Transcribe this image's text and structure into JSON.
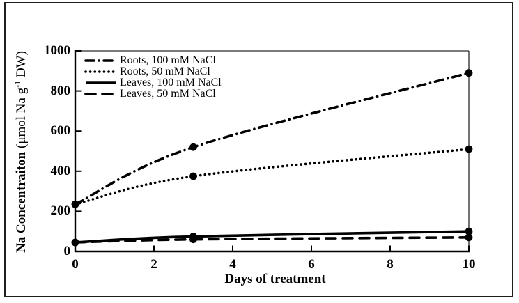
{
  "chart_data": {
    "type": "line",
    "title": "",
    "xlabel": "Days of treatment",
    "ylabel": {
      "bold": "Na Concentraiton",
      "unit_pre": "(μmol Na g",
      "unit_sup": "-1",
      "unit_post": " DW)"
    },
    "x": [
      0,
      3,
      10
    ],
    "xlim": [
      0,
      10
    ],
    "ylim": [
      0,
      1000
    ],
    "x_ticks": [
      0,
      2,
      4,
      6,
      8,
      10
    ],
    "y_ticks": [
      0,
      200,
      400,
      600,
      800,
      1000
    ],
    "grid": false,
    "legend_position": "top-left-inside",
    "marker": "filled-circle",
    "line_color": "#000000",
    "series": [
      {
        "name": "Roots, 100 mM NaCl",
        "style": "dashdot",
        "values": [
          235,
          520,
          890
        ]
      },
      {
        "name": "Roots, 50 mM NaCl",
        "style": "dotted",
        "values": [
          235,
          375,
          510
        ]
      },
      {
        "name": "Leaves, 100 mM NaCl",
        "style": "solid",
        "values": [
          45,
          75,
          100
        ]
      },
      {
        "name": "Leaves, 50 mM NaCl",
        "style": "dashed",
        "values": [
          45,
          60,
          70
        ]
      }
    ]
  }
}
